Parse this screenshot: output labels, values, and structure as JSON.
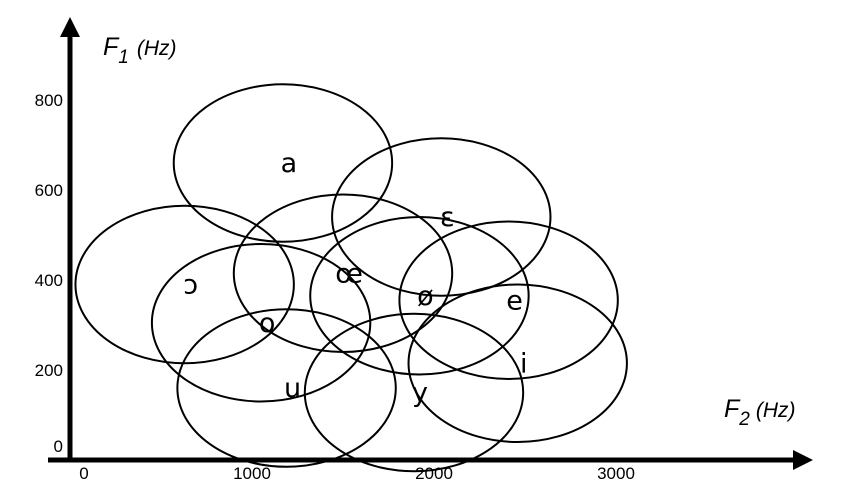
{
  "chart_data": {
    "type": "scatter",
    "title": "",
    "x_axis": {
      "symbol": "F",
      "subscript": "2",
      "unit": "(Hz)",
      "ticks": [
        "0",
        "1000",
        "2000",
        "3000"
      ],
      "range": [
        0,
        3800
      ]
    },
    "y_axis": {
      "symbol": "F",
      "subscript": "1",
      "unit": "(Hz)",
      "ticks": [
        "0",
        "200",
        "400",
        "600",
        "800"
      ],
      "range": [
        0,
        900
      ]
    },
    "grid": false,
    "legend": "none",
    "vowels": [
      {
        "label": "a",
        "f2_center": 1170,
        "f1_center": 660,
        "f2_spread": 600,
        "f1_spread": 175
      },
      {
        "label": "ɛ",
        "f2_center": 2040,
        "f1_center": 540,
        "f2_spread": 600,
        "f1_spread": 175
      },
      {
        "label": "ɔ",
        "f2_center": 630,
        "f1_center": 390,
        "f2_spread": 600,
        "f1_spread": 175
      },
      {
        "label": "œ",
        "f2_center": 1500,
        "f1_center": 415,
        "f2_spread": 600,
        "f1_spread": 175
      },
      {
        "label": "ø",
        "f2_center": 1920,
        "f1_center": 365,
        "f2_spread": 600,
        "f1_spread": 175
      },
      {
        "label": "e",
        "f2_center": 2410,
        "f1_center": 355,
        "f2_spread": 600,
        "f1_spread": 175
      },
      {
        "label": "o",
        "f2_center": 1050,
        "f1_center": 305,
        "f2_spread": 600,
        "f1_spread": 175
      },
      {
        "label": "u",
        "f2_center": 1190,
        "f1_center": 160,
        "f2_spread": 600,
        "f1_spread": 175
      },
      {
        "label": "y",
        "f2_center": 1890,
        "f1_center": 150,
        "f2_spread": 600,
        "f1_spread": 175
      },
      {
        "label": "i",
        "f2_center": 2460,
        "f1_center": 215,
        "f2_spread": 600,
        "f1_spread": 175
      }
    ]
  }
}
